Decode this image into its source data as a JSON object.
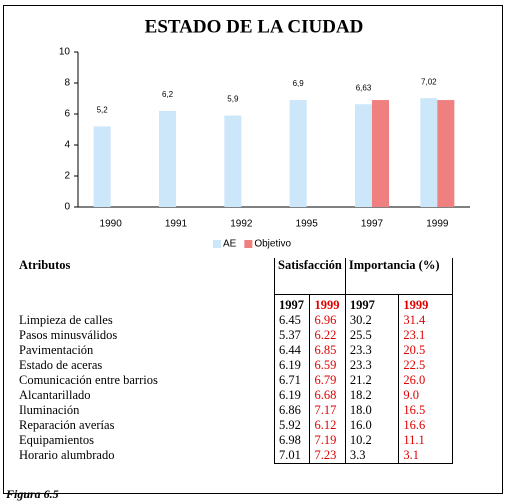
{
  "chart_data": {
    "type": "bar",
    "title": "ESTADO DE LA CIUDAD",
    "categories": [
      "1990",
      "1991",
      "1992",
      "1995",
      "1997",
      "1999"
    ],
    "series": [
      {
        "name": "AE",
        "color": "#cce6fa",
        "values": [
          5.2,
          6.2,
          5.9,
          6.9,
          6.63,
          7.02
        ],
        "value_labels": [
          "5,2",
          "6,2",
          "5,9",
          "6,9",
          "6,63",
          "7,02"
        ]
      },
      {
        "name": "Objetivo",
        "color": "#f08080",
        "values": [
          null,
          null,
          null,
          null,
          6.9,
          6.9
        ]
      }
    ],
    "ylim": [
      0,
      10
    ],
    "yticks": [
      0,
      2,
      4,
      6,
      8,
      10
    ],
    "grid": false,
    "legend": "bottom"
  },
  "table": {
    "headers": {
      "attribute": "Atributos",
      "satisfaction": "Satisfacción",
      "importance": "Importancia (%)"
    },
    "years": [
      "1997",
      "1999",
      "1997",
      "1999"
    ],
    "rows": [
      [
        "Limpieza de calles",
        "6.45",
        "6.96",
        "30.2",
        "31.4"
      ],
      [
        "Pasos minusválidos",
        "5.37",
        "6.22",
        "25.5",
        "23.1"
      ],
      [
        "Pavimentación",
        "6.44",
        "6.85",
        "23.3",
        "20.5"
      ],
      [
        "Estado de aceras",
        "6.19",
        "6.59",
        "23.3",
        "22.5"
      ],
      [
        "Comunicación entre barrios",
        "6.71",
        "6.79",
        "21.2",
        "26.0"
      ],
      [
        "Alcantarillado",
        "6.19",
        "6.68",
        "18.2",
        "9.0"
      ],
      [
        "Iluminación",
        "6.86",
        "7.17",
        "18.0",
        "16.5"
      ],
      [
        "Reparación averías",
        "5.92",
        "6.12",
        "16.0",
        "16.6"
      ],
      [
        "Equipamientos",
        "6.98",
        "7.19",
        "10.2",
        "11.1"
      ],
      [
        "Horario alumbrado",
        "7.01",
        "7.23",
        "3.3",
        "3.1"
      ]
    ]
  },
  "caption": "Figura 6.5"
}
